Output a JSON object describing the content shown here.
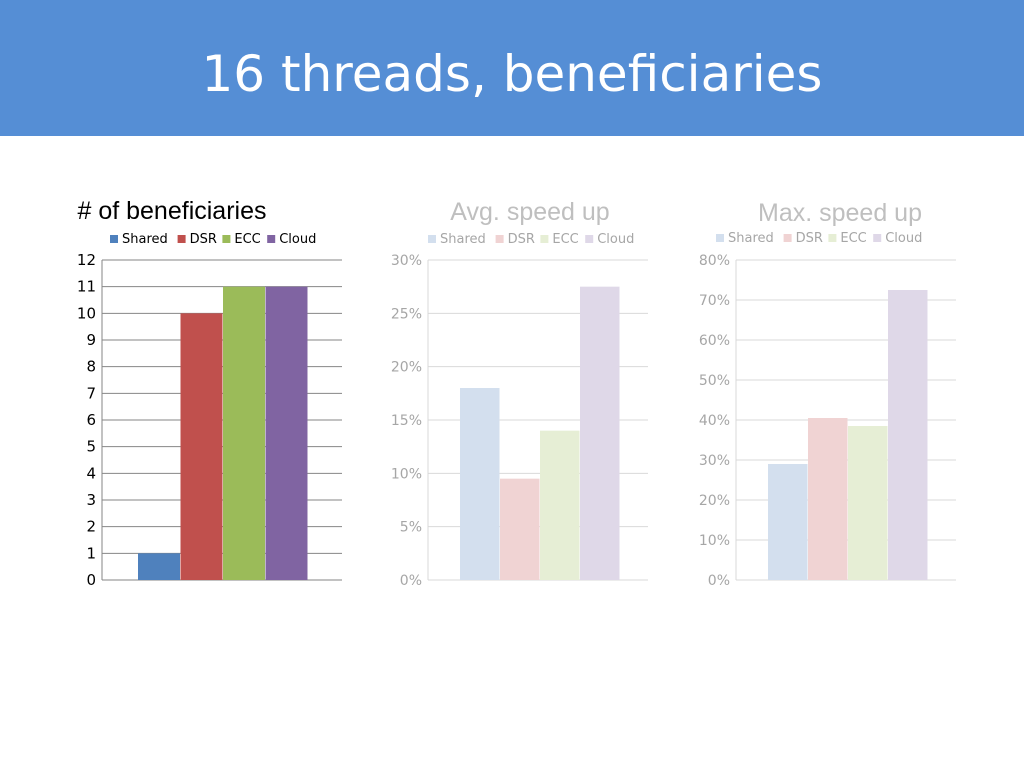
{
  "slide": {
    "title": "16 threads, beneficiaries"
  },
  "chart_data": [
    {
      "type": "bar",
      "title": "# of beneficiaries",
      "categories": [
        "Shared",
        "DSR",
        "ECC",
        "Cloud"
      ],
      "values": [
        1,
        10,
        11,
        11
      ],
      "ylim": [
        0,
        12
      ],
      "yticks": [
        0,
        1,
        2,
        3,
        4,
        5,
        6,
        7,
        8,
        9,
        10,
        11,
        12
      ],
      "ytick_format": "number",
      "legend_position": "top",
      "grid": true,
      "colors": [
        "#4f81bd",
        "#c0504d",
        "#9bbb59",
        "#8064a2"
      ],
      "title_color": "#000000",
      "text_color": "#000000"
    },
    {
      "type": "bar",
      "title": "Avg. speed up",
      "categories": [
        "Shared",
        "DSR",
        "ECC",
        "Cloud"
      ],
      "values": [
        18,
        9.5,
        14,
        27.5
      ],
      "ylim": [
        0,
        30
      ],
      "yticks": [
        0,
        5,
        10,
        15,
        20,
        25,
        30
      ],
      "ytick_format": "percent",
      "legend_position": "top",
      "grid": true,
      "colors": [
        "#d3dfee",
        "#f0d3d3",
        "#e6eed5",
        "#dfd8e8"
      ],
      "title_color": "#bfbfbf",
      "text_color": "#a6a6a6"
    },
    {
      "type": "bar",
      "title": "Max. speed up",
      "categories": [
        "Shared",
        "DSR",
        "ECC",
        "Cloud"
      ],
      "values": [
        29,
        40.5,
        38.5,
        72.5
      ],
      "ylim": [
        0,
        80
      ],
      "yticks": [
        0,
        10,
        20,
        30,
        40,
        50,
        60,
        70,
        80
      ],
      "ytick_format": "percent",
      "legend_position": "top",
      "grid": true,
      "colors": [
        "#d3dfee",
        "#f0d3d3",
        "#e6eed5",
        "#dfd8e8"
      ],
      "title_color": "#bfbfbf",
      "text_color": "#a6a6a6"
    }
  ]
}
